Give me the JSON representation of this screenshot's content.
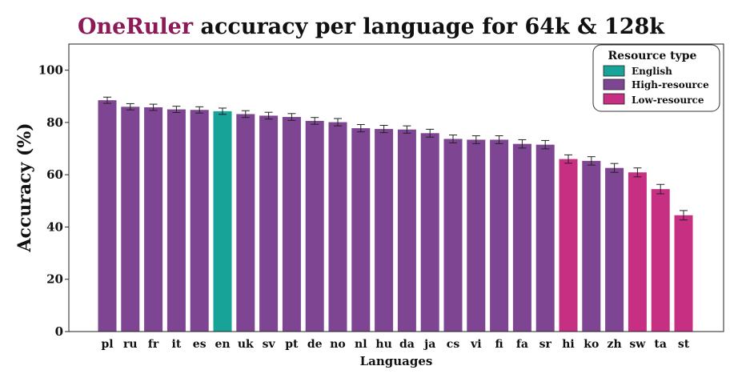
{
  "chart_data": {
    "type": "bar",
    "title_highlight": "OneRuler",
    "title_rest": " accuracy per language for 64k & 128k",
    "xlabel": "Languages",
    "ylabel": "Accuracy (%)",
    "ylim": [
      0,
      110
    ],
    "yticks": [
      0,
      20,
      40,
      60,
      80,
      100
    ],
    "categories": [
      "pl",
      "ru",
      "fr",
      "it",
      "es",
      "en",
      "uk",
      "sv",
      "pt",
      "de",
      "no",
      "nl",
      "hu",
      "da",
      "ja",
      "cs",
      "vi",
      "fi",
      "fa",
      "sr",
      "hi",
      "ko",
      "zh",
      "sw",
      "ta",
      "st"
    ],
    "values": [
      88.5,
      86.0,
      85.8,
      85.0,
      84.8,
      84.3,
      83.2,
      82.6,
      82.1,
      80.6,
      80.1,
      77.8,
      77.5,
      77.3,
      75.9,
      73.7,
      73.4,
      73.4,
      71.8,
      71.5,
      66.0,
      65.3,
      62.6,
      60.9,
      54.5,
      44.5
    ],
    "errors": [
      1.2,
      1.2,
      1.2,
      1.2,
      1.2,
      1.2,
      1.3,
      1.3,
      1.3,
      1.3,
      1.4,
      1.4,
      1.4,
      1.4,
      1.5,
      1.5,
      1.5,
      1.5,
      1.6,
      1.6,
      1.6,
      1.6,
      1.7,
      1.7,
      1.8,
      1.8
    ],
    "groups": [
      "High-resource",
      "High-resource",
      "High-resource",
      "High-resource",
      "High-resource",
      "English",
      "High-resource",
      "High-resource",
      "High-resource",
      "High-resource",
      "High-resource",
      "High-resource",
      "High-resource",
      "High-resource",
      "High-resource",
      "High-resource",
      "High-resource",
      "High-resource",
      "High-resource",
      "High-resource",
      "Low-resource",
      "High-resource",
      "High-resource",
      "Low-resource",
      "Low-resource",
      "Low-resource"
    ],
    "legend": {
      "title": "Resource type",
      "placement": "top-right",
      "items": [
        {
          "label": "English",
          "color": "#17a398"
        },
        {
          "label": "High-resource",
          "color": "#7d4592"
        },
        {
          "label": "Low-resource",
          "color": "#c72f83"
        }
      ]
    },
    "grid": false
  }
}
